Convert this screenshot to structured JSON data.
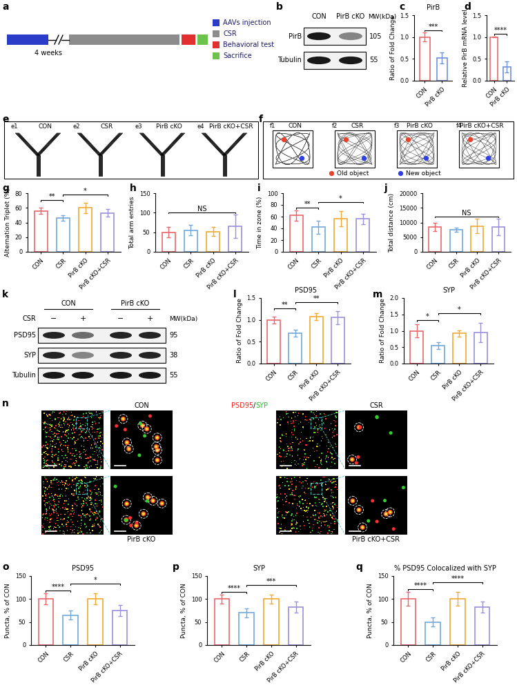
{
  "chart_data": [
    {
      "panel": "c",
      "type": "bar",
      "title": "PirB",
      "ylabel": "Ratio of Fold Change",
      "categories": [
        "CON",
        "PirB cKO"
      ],
      "values": [
        1.0,
        0.52
      ],
      "errors": [
        0.1,
        0.12
      ],
      "colors": [
        "#e8666a",
        "#6f8fe0"
      ],
      "ylim": [
        0,
        1.5
      ],
      "yticks": [
        {
          "value": 0,
          "label": "0.0"
        },
        {
          "value": 0.5,
          "label": "0.5"
        },
        {
          "value": 1.0,
          "label": "1.0"
        },
        {
          "value": 1.5,
          "label": "1.5"
        }
      ],
      "significance": [
        {
          "pair": [
            0,
            1
          ],
          "label": "***"
        }
      ]
    },
    {
      "panel": "d",
      "type": "bar",
      "ylabel": "Relative PirB mRNA level",
      "categories": [
        "CON",
        "PirB cKO"
      ],
      "values": [
        1.0,
        0.32
      ],
      "errors": [
        0.01,
        0.13
      ],
      "colors": [
        "#e8666a",
        "#6f8fe0"
      ],
      "ylim": [
        0,
        1.5
      ],
      "yticks": [
        {
          "value": 0,
          "label": "0.0"
        },
        {
          "value": 0.5,
          "label": "0.5"
        },
        {
          "value": 1.0,
          "label": "1.0"
        },
        {
          "value": 1.5,
          "label": "1.5"
        }
      ],
      "significance": [
        {
          "pair": [
            0,
            1
          ],
          "label": "****"
        }
      ]
    },
    {
      "panel": "g",
      "type": "bar",
      "ylabel": "Alternation Triplet (%)",
      "categories": [
        "CON",
        "CSR",
        "PirB cKO",
        "PirB cKO+CSR"
      ],
      "values": [
        56,
        46,
        60,
        53
      ],
      "errors": [
        4,
        4,
        7,
        5
      ],
      "colors": [
        "#e8666a",
        "#6fa8dc",
        "#f0a830",
        "#9a8fdc"
      ],
      "ylim": [
        0,
        80
      ],
      "yticks": [
        0,
        20,
        40,
        60,
        80
      ],
      "significance": [
        {
          "pair": [
            0,
            1
          ],
          "label": "**"
        },
        {
          "pair": [
            1,
            3
          ],
          "label": "*"
        }
      ]
    },
    {
      "panel": "h",
      "type": "bar",
      "ylabel": "Total arm entries",
      "categories": [
        "CON",
        "CSR",
        "PirB cKO",
        "PirB cKO+CSR"
      ],
      "values": [
        50,
        55,
        52,
        65
      ],
      "errors": [
        13,
        13,
        12,
        30
      ],
      "colors": [
        "#e8666a",
        "#6fa8dc",
        "#f0a830",
        "#9a8fdc"
      ],
      "ylim": [
        0,
        150
      ],
      "yticks": [
        0,
        50,
        100,
        150
      ],
      "significance": [
        {
          "pair": [
            0,
            3
          ],
          "label": "NS"
        }
      ]
    },
    {
      "panel": "i",
      "type": "bar",
      "ylabel": "Time in zone (%)",
      "categories": [
        "CON",
        "CSR",
        "PirB cKO",
        "PirB cKO+CSR"
      ],
      "values": [
        62,
        42,
        56,
        56
      ],
      "errors": [
        9,
        11,
        13,
        9
      ],
      "colors": [
        "#e8666a",
        "#6fa8dc",
        "#f0a830",
        "#9a8fdc"
      ],
      "ylim": [
        0,
        100
      ],
      "yticks": [
        0,
        20,
        40,
        60,
        80,
        100
      ],
      "significance": [
        {
          "pair": [
            0,
            1
          ],
          "label": "**"
        },
        {
          "pair": [
            1,
            3
          ],
          "label": "*"
        }
      ]
    },
    {
      "panel": "j",
      "type": "bar",
      "ylabel": "Total distance (cm)",
      "categories": [
        "CON",
        "CSR",
        "PirB cKO",
        "PirB cKO+CSR"
      ],
      "values": [
        8500,
        7500,
        8800,
        8500
      ],
      "errors": [
        1500,
        700,
        2500,
        2800
      ],
      "colors": [
        "#e8666a",
        "#6fa8dc",
        "#f0a830",
        "#9a8fdc"
      ],
      "ylim": [
        0,
        20000
      ],
      "yticks": [
        0,
        5000,
        10000,
        15000,
        20000
      ],
      "significance": [
        {
          "pair": [
            0,
            3
          ],
          "label": "NS"
        }
      ]
    },
    {
      "panel": "l",
      "type": "bar",
      "title": "PSD95",
      "ylabel": "Ratio of Fold Change",
      "categories": [
        "CON",
        "CSR",
        "PirB cKO",
        "PirB cKO+CSR"
      ],
      "values": [
        1.0,
        0.7,
        1.08,
        1.05
      ],
      "errors": [
        0.08,
        0.08,
        0.08,
        0.15
      ],
      "colors": [
        "#e8666a",
        "#6fa8dc",
        "#f0a830",
        "#9a8fdc"
      ],
      "ylim": [
        0,
        1.5
      ],
      "yticks": [
        {
          "value": 0,
          "label": "0.0"
        },
        {
          "value": 0.5,
          "label": "0.5"
        },
        {
          "value": 1.0,
          "label": "1.0"
        },
        {
          "value": 1.5,
          "label": "1.5"
        }
      ],
      "significance": [
        {
          "pair": [
            0,
            1
          ],
          "label": "**"
        },
        {
          "pair": [
            1,
            3
          ],
          "label": "**"
        }
      ]
    },
    {
      "panel": "m",
      "type": "bar",
      "title": "SYP",
      "ylabel": "Ratio of Fold Change",
      "categories": [
        "CON",
        "CSR",
        "PirB cKO",
        "PirB cKO+CSR"
      ],
      "values": [
        1.0,
        0.55,
        0.92,
        0.95
      ],
      "errors": [
        0.2,
        0.1,
        0.1,
        0.3
      ],
      "colors": [
        "#e8666a",
        "#6fa8dc",
        "#f0a830",
        "#9a8fdc"
      ],
      "ylim": [
        0,
        2.0
      ],
      "yticks": [
        {
          "value": 0,
          "label": "0.0"
        },
        {
          "value": 0.5,
          "label": "0.5"
        },
        {
          "value": 1.0,
          "label": "1.0"
        },
        {
          "value": 1.5,
          "label": "1.5"
        },
        {
          "value": 2.0,
          "label": "2.0"
        }
      ],
      "significance": [
        {
          "pair": [
            0,
            1
          ],
          "label": "*"
        },
        {
          "pair": [
            1,
            3
          ],
          "label": "*"
        }
      ]
    },
    {
      "panel": "o",
      "type": "bar",
      "title": "PSD95",
      "ylabel": "Puncta, % of CON",
      "categories": [
        "CON",
        "CSR",
        "PirB cKO",
        "PirB cKO+CSR"
      ],
      "values": [
        100,
        65,
        100,
        75
      ],
      "errors": [
        12,
        10,
        12,
        12
      ],
      "colors": [
        "#e8666a",
        "#6fa8dc",
        "#f0a830",
        "#9a8fdc"
      ],
      "ylim": [
        0,
        150
      ],
      "yticks": [
        0,
        50,
        100,
        150
      ],
      "significance": [
        {
          "pair": [
            0,
            1
          ],
          "label": "****"
        },
        {
          "pair": [
            1,
            3
          ],
          "label": "*"
        }
      ]
    },
    {
      "panel": "p",
      "type": "bar",
      "title": "SYP",
      "ylabel": "Puncta, % of CON",
      "categories": [
        "CON",
        "CSR",
        "PirB cKO",
        "PirB cKO+CSR"
      ],
      "values": [
        100,
        70,
        100,
        82
      ],
      "errors": [
        10,
        10,
        10,
        12
      ],
      "colors": [
        "#e8666a",
        "#6fa8dc",
        "#f0a830",
        "#9a8fdc"
      ],
      "ylim": [
        0,
        150
      ],
      "yticks": [
        0,
        50,
        100,
        150
      ],
      "significance": [
        {
          "pair": [
            0,
            1
          ],
          "label": "****"
        },
        {
          "pair": [
            1,
            3
          ],
          "label": "***"
        }
      ]
    },
    {
      "panel": "q",
      "type": "bar",
      "title": "% PSD95 Colocalized with SYP",
      "ylabel": "Puncta, % of CON",
      "categories": [
        "CON",
        "CSR",
        "PirB cKO",
        "PirB cKO+CSR"
      ],
      "values": [
        100,
        50,
        100,
        82
      ],
      "errors": [
        15,
        10,
        15,
        12
      ],
      "colors": [
        "#e8666a",
        "#6fa8dc",
        "#f0a830",
        "#9a8fdc"
      ],
      "ylim": [
        0,
        150
      ],
      "yticks": [
        0,
        50,
        100,
        150
      ],
      "significance": [
        {
          "pair": [
            0,
            1
          ],
          "label": "****"
        },
        {
          "pair": [
            1,
            3
          ],
          "label": "****"
        }
      ]
    }
  ],
  "timeline": {
    "panel": "a",
    "break_label": "4 weeks",
    "steps": [
      {
        "label": "AAVs injection",
        "color": "#2b3cc8"
      },
      {
        "label": "CSR",
        "color": "#8c8c8c"
      },
      {
        "label": "Behavioral test",
        "color": "#e03030"
      },
      {
        "label": "Sacrifice",
        "color": "#6cc24a"
      }
    ]
  },
  "blots": [
    {
      "panel": "b",
      "lanes": [
        "CON",
        "PirB cKO"
      ],
      "mw_header": "MW(kDa)",
      "rows": [
        {
          "name": "PirB",
          "mw": 105
        },
        {
          "name": "Tubulin",
          "mw": 55
        }
      ]
    },
    {
      "panel": "k",
      "row_label": "CSR",
      "groups": [
        "CON",
        "PirB cKO"
      ],
      "lanes": [
        "−",
        "+",
        "−",
        "+"
      ],
      "mw_header": "MW(kDa)",
      "rows": [
        {
          "name": "PSD95",
          "mw": 95
        },
        {
          "name": "SYP",
          "mw": 38
        },
        {
          "name": "Tubulin",
          "mw": 55
        }
      ]
    }
  ],
  "ymaze": {
    "panel": "e",
    "subpanels": [
      "e1",
      "e2",
      "e3",
      "e4"
    ],
    "titles": [
      "CON",
      "CSR",
      "PirB cKO",
      "PirB cKO+CSR"
    ]
  },
  "open_field": {
    "panel": "f",
    "subpanels": [
      "f1",
      "f2",
      "f3",
      "f4"
    ],
    "titles": [
      "CON",
      "CSR",
      "PirB cKO",
      "PirB cKO+CSR"
    ],
    "legend": [
      {
        "name": "Old object",
        "color": "#e8432c"
      },
      {
        "name": "New object",
        "color": "#2f3fe0"
      }
    ]
  },
  "images": {
    "panel": "n",
    "label": [
      "PSD95",
      "/",
      "SYP"
    ],
    "label_colors": [
      "#ff2020",
      "#000000",
      "#20c020"
    ],
    "conditions": [
      "CON",
      "CSR",
      "PirB cKO",
      "PirB cKO+CSR"
    ]
  }
}
